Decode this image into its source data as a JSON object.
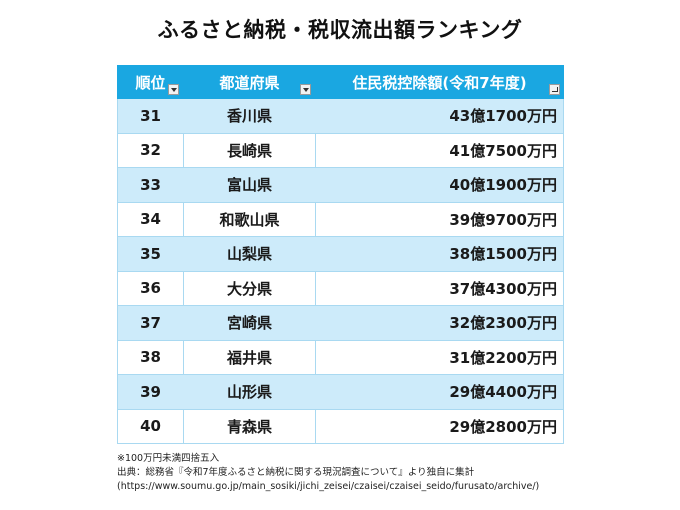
{
  "title": "ふるさと納税・税収流出額ランキング",
  "table": {
    "headers": {
      "rank": "順位",
      "prefecture": "都道府県",
      "amount": "住民税控除額(令和7年度)"
    },
    "rows": [
      {
        "rank": "31",
        "prefecture": "香川県",
        "amount": "43億1700万円"
      },
      {
        "rank": "32",
        "prefecture": "長崎県",
        "amount": "41億7500万円"
      },
      {
        "rank": "33",
        "prefecture": "富山県",
        "amount": "40億1900万円"
      },
      {
        "rank": "34",
        "prefecture": "和歌山県",
        "amount": "39億9700万円"
      },
      {
        "rank": "35",
        "prefecture": "山梨県",
        "amount": "38億1500万円"
      },
      {
        "rank": "36",
        "prefecture": "大分県",
        "amount": "37億4300万円"
      },
      {
        "rank": "37",
        "prefecture": "宮崎県",
        "amount": "32億2300万円"
      },
      {
        "rank": "38",
        "prefecture": "福井県",
        "amount": "31億2200万円"
      },
      {
        "rank": "39",
        "prefecture": "山形県",
        "amount": "29億4400万円"
      },
      {
        "rank": "40",
        "prefecture": "青森県",
        "amount": "29億2800万円"
      }
    ]
  },
  "notes": {
    "rounding": "※100万円未満四捨五入",
    "source": "出典：総務省『令和7年度ふるさと納税に関する現況調査について』より独自に集計",
    "url": "(https://www.soumu.go.jp/main_sosiki/jichi_zeisei/czaisei/czaisei_seido/furusato/archive/)"
  },
  "colors": {
    "header_bg": "#1aa7e1",
    "stripe_bg": "#cdebfa"
  },
  "icons": {
    "filter": "dropdown-filter-icon",
    "sorted_filter": "sorted-filter-icon"
  }
}
